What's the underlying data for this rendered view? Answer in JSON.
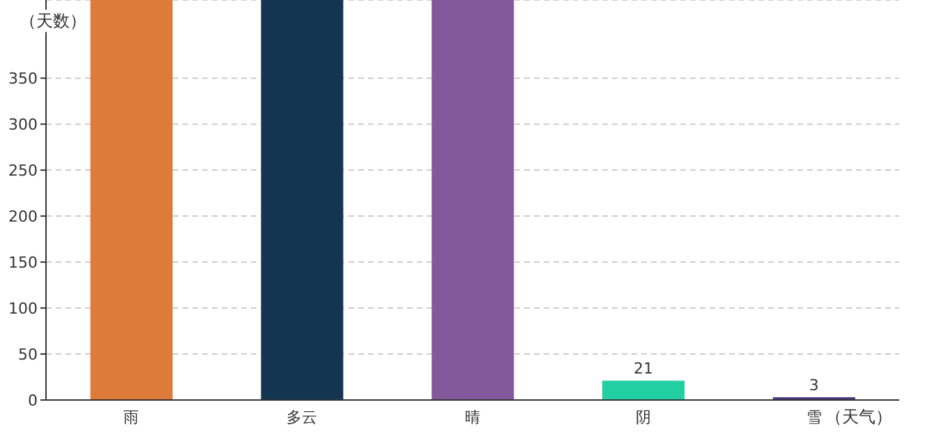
{
  "chart_data": {
    "type": "bar",
    "xlabel": "（天气）",
    "ylabel": "（天数）",
    "categories": [
      "雨",
      "多云",
      "晴",
      "阴",
      "雪"
    ],
    "values": [
      435,
      435,
      435,
      21,
      3
    ],
    "colors": [
      "#dd7b3b",
      "#143552",
      "#82589a",
      "#21cfa3",
      "#4a3a80"
    ],
    "value_labels": [
      null,
      null,
      null,
      "21",
      "3"
    ],
    "ylim": [
      0,
      435
    ],
    "yticks": [
      0,
      50,
      100,
      150,
      200,
      250,
      300,
      350
    ],
    "grid": "y"
  }
}
